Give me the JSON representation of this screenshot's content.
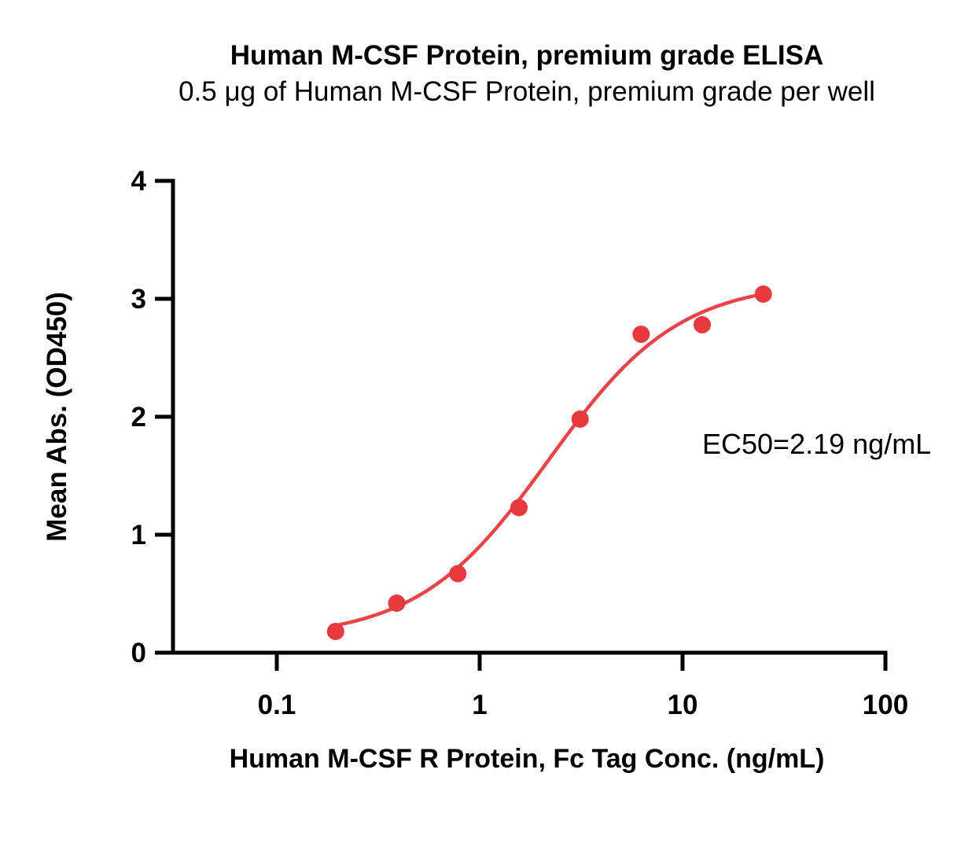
{
  "chart_data": {
    "type": "scatter",
    "title": "Human M-CSF Protein, premium grade ELISA",
    "subtitle": "0.5 μg of Human M-CSF Protein, premium grade per well",
    "xlabel": "Human M-CSF R Protein, Fc Tag Conc. (ng/mL)",
    "ylabel": "Mean Abs. (OD450)",
    "x_scale": "log10",
    "xlim": [
      0.031,
      100
    ],
    "ylim": [
      0,
      4
    ],
    "grid": false,
    "legend": false,
    "x_ticks": {
      "values": [
        0.1,
        1,
        10,
        100
      ],
      "labels": [
        "0.1",
        "1",
        "10",
        "100"
      ]
    },
    "y_ticks": {
      "values": [
        0,
        1,
        2,
        3,
        4
      ],
      "labels": [
        "0",
        "1",
        "2",
        "3",
        "4"
      ]
    },
    "series": [
      {
        "x": [
          0.195,
          0.39,
          0.78,
          1.5625,
          3.125,
          6.25,
          12.5,
          25
        ],
        "y": [
          0.18,
          0.42,
          0.67,
          1.23,
          1.98,
          2.7,
          2.78,
          3.04
        ]
      }
    ],
    "fit_curve": {
      "model": "4PL",
      "bottom": 0.12,
      "top": 3.15,
      "ec50": 2.19,
      "hill": 1.35,
      "x_start": 0.195,
      "x_end": 25
    },
    "annotation": {
      "text": "EC50=2.19 ng/mL"
    },
    "colors": {
      "point": "#E8393E",
      "curve": "#EA4348",
      "axis": "#000000",
      "background": "#FFFFFF"
    }
  }
}
